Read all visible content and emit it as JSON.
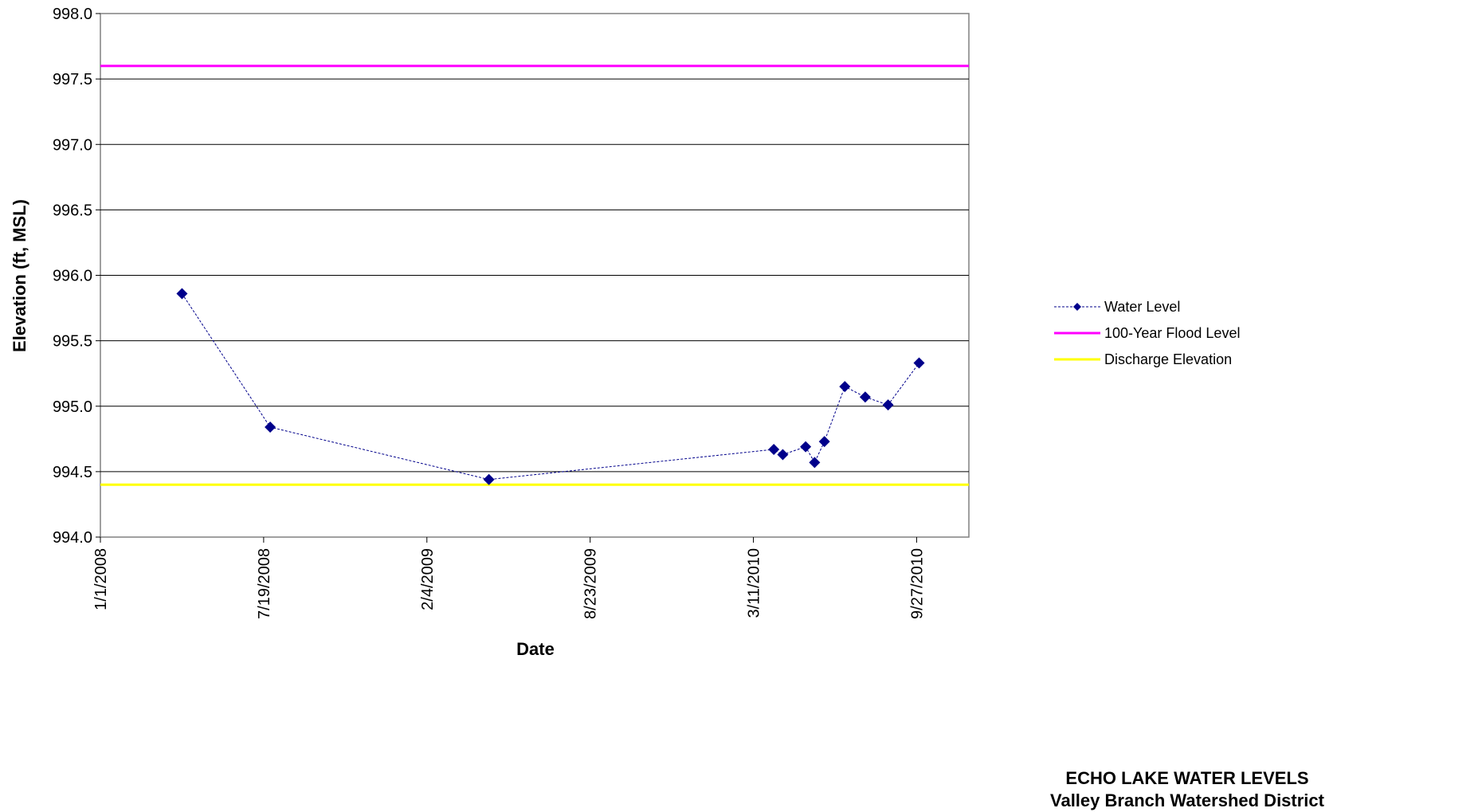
{
  "chart_data": {
    "type": "line",
    "xlabel": "Date",
    "ylabel": "Elevation (ft, MSL)",
    "ylim": [
      994.0,
      998.0
    ],
    "yticks": [
      "994.0",
      "994.5",
      "995.0",
      "995.5",
      "996.0",
      "996.5",
      "997.0",
      "997.5",
      "998.0"
    ],
    "xlim": [
      "2008-01-01",
      "2010-11-30"
    ],
    "xtick_dates": [
      "2008-01-01",
      "2008-07-19",
      "2009-02-04",
      "2009-08-23",
      "2010-03-11",
      "2010-09-27"
    ],
    "xtick_labels": [
      "1/1/2008",
      "7/19/2008",
      "2/4/2009",
      "8/23/2009",
      "3/11/2010",
      "9/27/2010"
    ],
    "grid": "horizontal",
    "legend_position": "right",
    "series": [
      {
        "name": "Water Level",
        "type": "line-markers",
        "color": "#00008B",
        "x": [
          "2008-04-10",
          "2008-07-27",
          "2009-04-21",
          "2010-04-05",
          "2010-04-16",
          "2010-05-14",
          "2010-05-25",
          "2010-06-06",
          "2010-07-01",
          "2010-07-26",
          "2010-08-23",
          "2010-09-30"
        ],
        "y": [
          995.86,
          994.84,
          994.44,
          994.67,
          994.63,
          994.69,
          994.57,
          994.73,
          995.15,
          995.07,
          995.01,
          995.33
        ]
      },
      {
        "name": "100-Year Flood Level",
        "type": "hline",
        "color": "#FF00FF",
        "y": 997.6
      },
      {
        "name": "Discharge Elevation",
        "type": "hline",
        "color": "#FFFF00",
        "y": 994.4
      }
    ]
  },
  "footer": {
    "title": "ECHO LAKE WATER LEVELS",
    "subtitle": "Valley Branch Watershed District"
  }
}
